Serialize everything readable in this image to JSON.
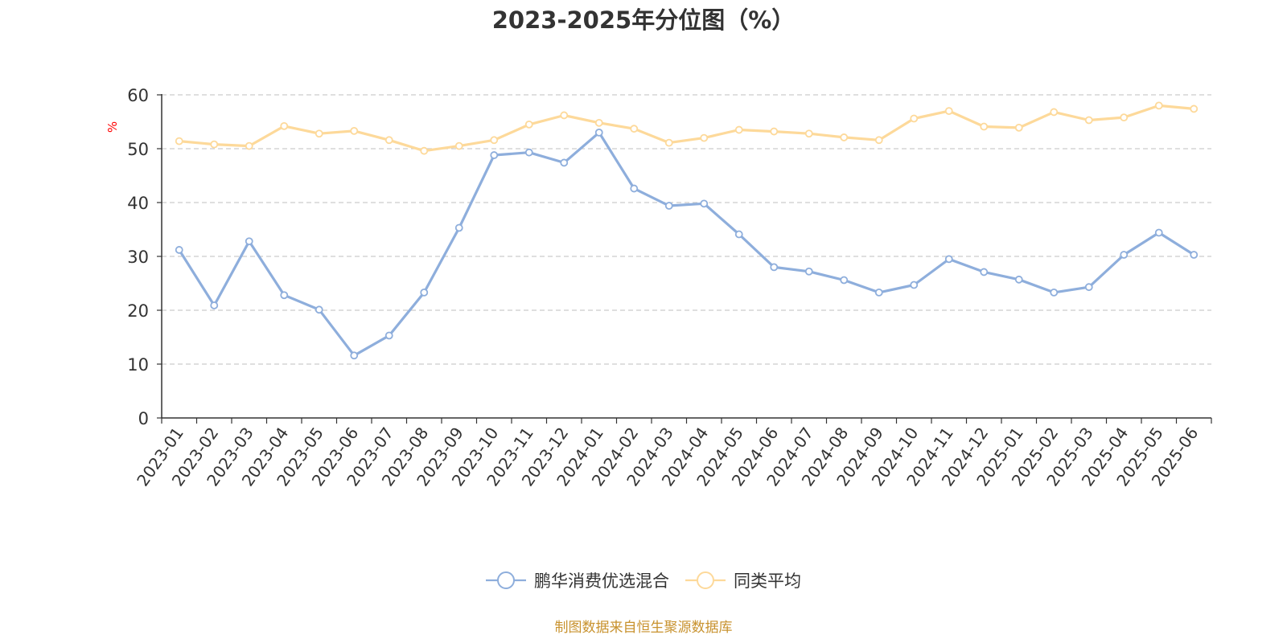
{
  "chart_data": {
    "type": "line",
    "title": "2023-2025年分位图（%）",
    "ylabel": "%",
    "xlabel": "",
    "ylim": [
      0,
      60
    ],
    "yticks": [
      0,
      10,
      20,
      30,
      40,
      50,
      60
    ],
    "grid": true,
    "legend_position": "bottom",
    "categories": [
      "2023-01",
      "2023-02",
      "2023-03",
      "2023-04",
      "2023-05",
      "2023-06",
      "2023-07",
      "2023-08",
      "2023-09",
      "2023-10",
      "2023-11",
      "2023-12",
      "2024-01",
      "2024-02",
      "2024-03",
      "2024-04",
      "2024-05",
      "2024-06",
      "2024-07",
      "2024-08",
      "2024-09",
      "2024-10",
      "2024-11",
      "2024-12",
      "2025-01",
      "2025-02",
      "2025-03",
      "2025-04",
      "2025-05",
      "2025-06"
    ],
    "series": [
      {
        "name": "鹏华消费优选混合",
        "color": "#8eaedc",
        "values": [
          31.2,
          20.9,
          32.8,
          22.8,
          20.1,
          11.6,
          15.3,
          23.3,
          35.3,
          48.8,
          49.3,
          47.4,
          53.0,
          42.6,
          39.4,
          39.8,
          34.1,
          28.0,
          27.2,
          25.6,
          23.3,
          24.7,
          29.5,
          27.1,
          25.7,
          23.3,
          24.3,
          30.3,
          34.4,
          30.3
        ]
      },
      {
        "name": "同类平均",
        "color": "#fdd99a",
        "values": [
          51.4,
          50.8,
          50.5,
          54.2,
          52.8,
          53.3,
          51.6,
          49.6,
          50.5,
          51.6,
          54.5,
          56.2,
          54.8,
          53.7,
          51.1,
          52.0,
          53.5,
          53.2,
          52.8,
          52.1,
          51.6,
          55.6,
          57.0,
          54.1,
          53.9,
          56.8,
          55.3,
          55.8,
          58.0,
          57.4
        ]
      }
    ]
  },
  "footer": {
    "source": "制图数据来自恒生聚源数据库"
  },
  "style": {
    "axis_color": "#333333",
    "grid_color": "#cccccc",
    "ylabel_color": "#ff0000",
    "source_color": "#c8922e"
  }
}
